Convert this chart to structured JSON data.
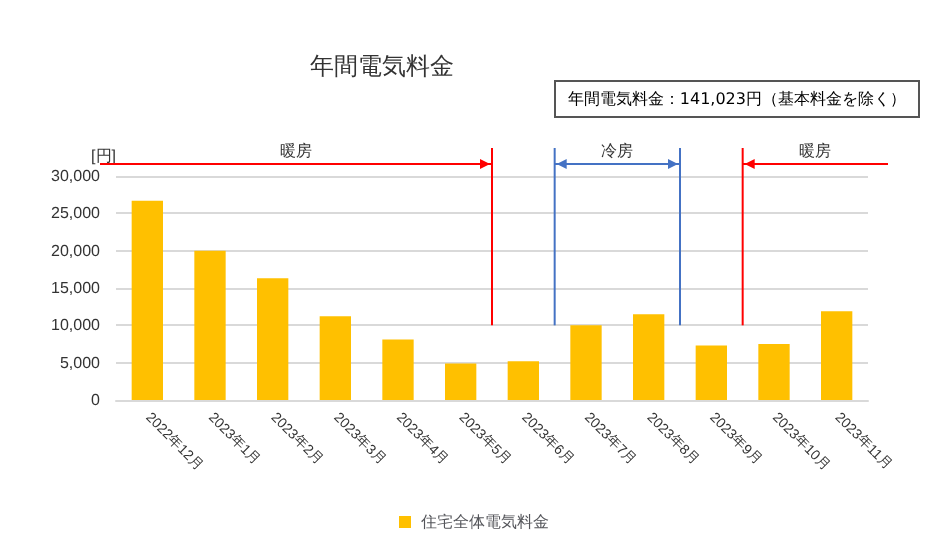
{
  "chart_data": {
    "type": "bar",
    "title": "年間電気料金",
    "ylabel": "[円]",
    "annotations": [
      "年間電気料金：141,023円（基本料金を除く）",
      "暖房",
      "冷房",
      "暖房"
    ],
    "categories": [
      "2022年12月",
      "2023年1月",
      "2023年2月",
      "2023年3月",
      "2023年4月",
      "2023年5月",
      "2023年6月",
      "2023年7月",
      "2023年8月",
      "2023年9月",
      "2023年10月",
      "2023年11月"
    ],
    "series": [
      {
        "name": "住宅全体電気料金",
        "color": "#ffc000",
        "values": [
          26700,
          20000,
          16300,
          11200,
          8100,
          4900,
          5200,
          10000,
          11500,
          7300,
          7500,
          11900
        ]
      }
    ],
    "ylim": [
      0,
      30000
    ],
    "yticks": [
      0,
      {
        "value": 5000,
        "label": "5,000"
      },
      {
        "value": 10000,
        "label": "10,000"
      },
      {
        "value": 15000,
        "label": "15,000"
      },
      {
        "value": 20000,
        "label": "20,000"
      },
      {
        "value": 25000,
        "label": "25,000"
      },
      {
        "value": 30000,
        "label": "30,000"
      }
    ],
    "grid": "y",
    "legend": "bottom"
  }
}
